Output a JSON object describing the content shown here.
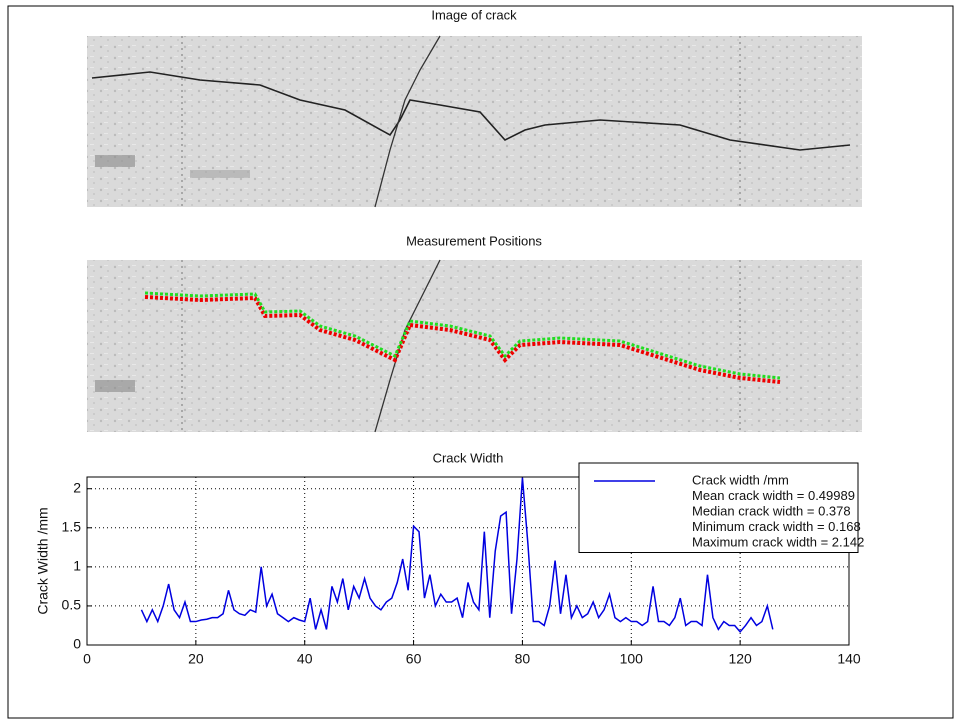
{
  "panels": [
    {
      "title": "Image of crack"
    },
    {
      "title": "Measurement Positions"
    }
  ],
  "chart_data": {
    "type": "line",
    "title": "Crack Width",
    "y_label": "Crack Width /mm",
    "x": [
      10,
      11,
      12,
      13,
      14,
      15,
      16,
      17,
      18,
      19,
      20,
      21,
      22,
      23,
      24,
      25,
      26,
      27,
      28,
      29,
      30,
      31,
      32,
      33,
      34,
      35,
      36,
      37,
      38,
      39,
      40,
      41,
      42,
      43,
      44,
      45,
      46,
      47,
      48,
      49,
      50,
      51,
      52,
      53,
      54,
      55,
      56,
      57,
      58,
      59,
      60,
      61,
      62,
      63,
      64,
      65,
      66,
      67,
      68,
      69,
      70,
      71,
      72,
      73,
      74,
      75,
      76,
      77,
      78,
      79,
      80,
      81,
      82,
      83,
      84,
      85,
      86,
      87,
      88,
      89,
      90,
      91,
      92,
      93,
      94,
      95,
      96,
      97,
      98,
      99,
      100,
      101,
      102,
      103,
      104,
      105,
      106,
      107,
      108,
      109,
      110,
      111,
      112,
      113,
      114,
      115,
      116,
      117,
      118,
      119,
      120,
      121,
      122,
      123,
      124,
      125,
      126
    ],
    "series": [
      {
        "name": "Crack width /mm",
        "color": "#0000e0",
        "values": [
          0.45,
          0.3,
          0.45,
          0.3,
          0.5,
          0.78,
          0.45,
          0.35,
          0.55,
          0.3,
          0.3,
          0.32,
          0.33,
          0.35,
          0.35,
          0.4,
          0.7,
          0.45,
          0.4,
          0.38,
          0.45,
          0.42,
          1.0,
          0.5,
          0.65,
          0.4,
          0.35,
          0.3,
          0.35,
          0.32,
          0.3,
          0.6,
          0.2,
          0.45,
          0.2,
          0.75,
          0.55,
          0.85,
          0.45,
          0.75,
          0.6,
          0.85,
          0.6,
          0.5,
          0.45,
          0.55,
          0.6,
          0.8,
          1.1,
          0.7,
          1.52,
          1.45,
          0.6,
          0.9,
          0.5,
          0.65,
          0.55,
          0.55,
          0.6,
          0.35,
          0.8,
          0.55,
          0.45,
          1.45,
          0.35,
          1.2,
          1.65,
          1.7,
          0.4,
          1.1,
          2.142,
          1.3,
          0.3,
          0.3,
          0.25,
          0.5,
          1.08,
          0.4,
          0.9,
          0.35,
          0.5,
          0.35,
          0.4,
          0.55,
          0.35,
          0.45,
          0.65,
          0.35,
          0.3,
          0.35,
          0.3,
          0.3,
          0.25,
          0.3,
          0.75,
          0.3,
          0.3,
          0.25,
          0.35,
          0.6,
          0.25,
          0.3,
          0.3,
          0.25,
          0.9,
          0.35,
          0.2,
          0.3,
          0.25,
          0.25,
          0.168,
          0.25,
          0.35,
          0.25,
          0.3,
          0.5,
          0.2
        ]
      }
    ],
    "annotations": [
      "Mean crack width = 0.49989",
      "Median crack width = 0.378",
      "Minimum crack width = 0.168",
      "Maximum crack width = 2.142"
    ],
    "xlim": [
      0,
      140
    ],
    "xticks": [
      0,
      20,
      40,
      60,
      80,
      100,
      120,
      140
    ],
    "ylim": [
      0,
      2.15
    ],
    "yticks": [
      0,
      0.5,
      1,
      1.5,
      2
    ],
    "grid": true,
    "legend": "upper right"
  }
}
